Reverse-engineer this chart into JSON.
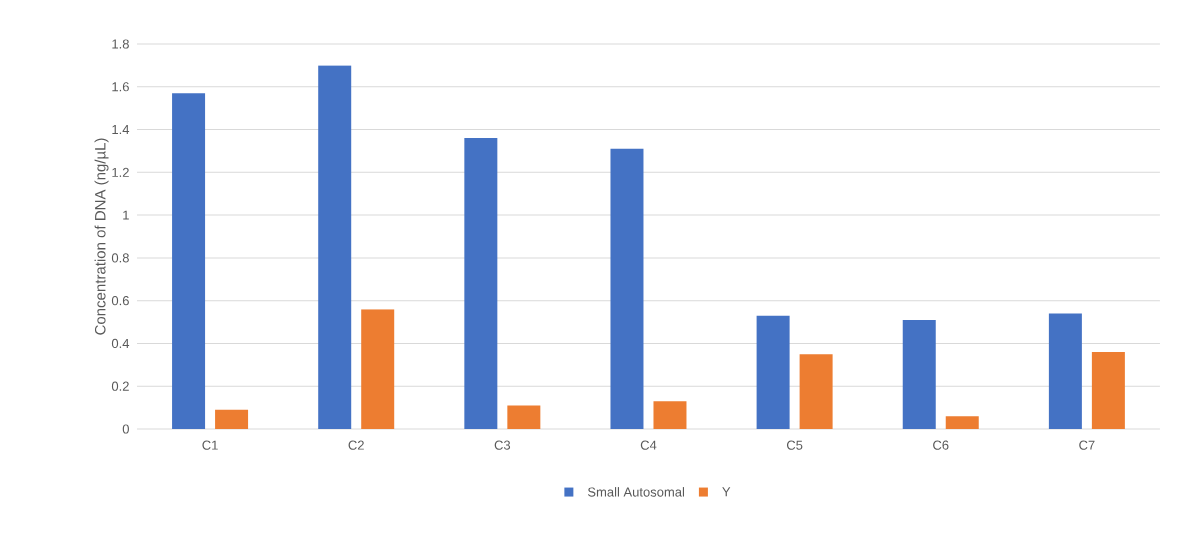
{
  "chart_data": {
    "type": "bar",
    "ylabel": "Concentration of DNA (ng/µL)",
    "categories": [
      "C1",
      "C2",
      "C3",
      "C4",
      "C5",
      "C6",
      "C7"
    ],
    "series": [
      {
        "name": "Small Autosomal",
        "color": "#4472c4",
        "values": [
          1.57,
          1.7,
          1.36,
          1.31,
          0.53,
          0.51,
          0.54
        ]
      },
      {
        "name": "Y",
        "color": "#ed7d31",
        "values": [
          0.09,
          0.56,
          0.11,
          0.13,
          0.35,
          0.06,
          0.36
        ]
      }
    ],
    "ylim": [
      0,
      1.8
    ],
    "yticks": [
      0,
      0.2,
      0.4,
      0.6,
      0.8,
      1,
      1.2,
      1.4,
      1.6,
      1.8
    ],
    "grid": "y",
    "legend": "bottom"
  }
}
